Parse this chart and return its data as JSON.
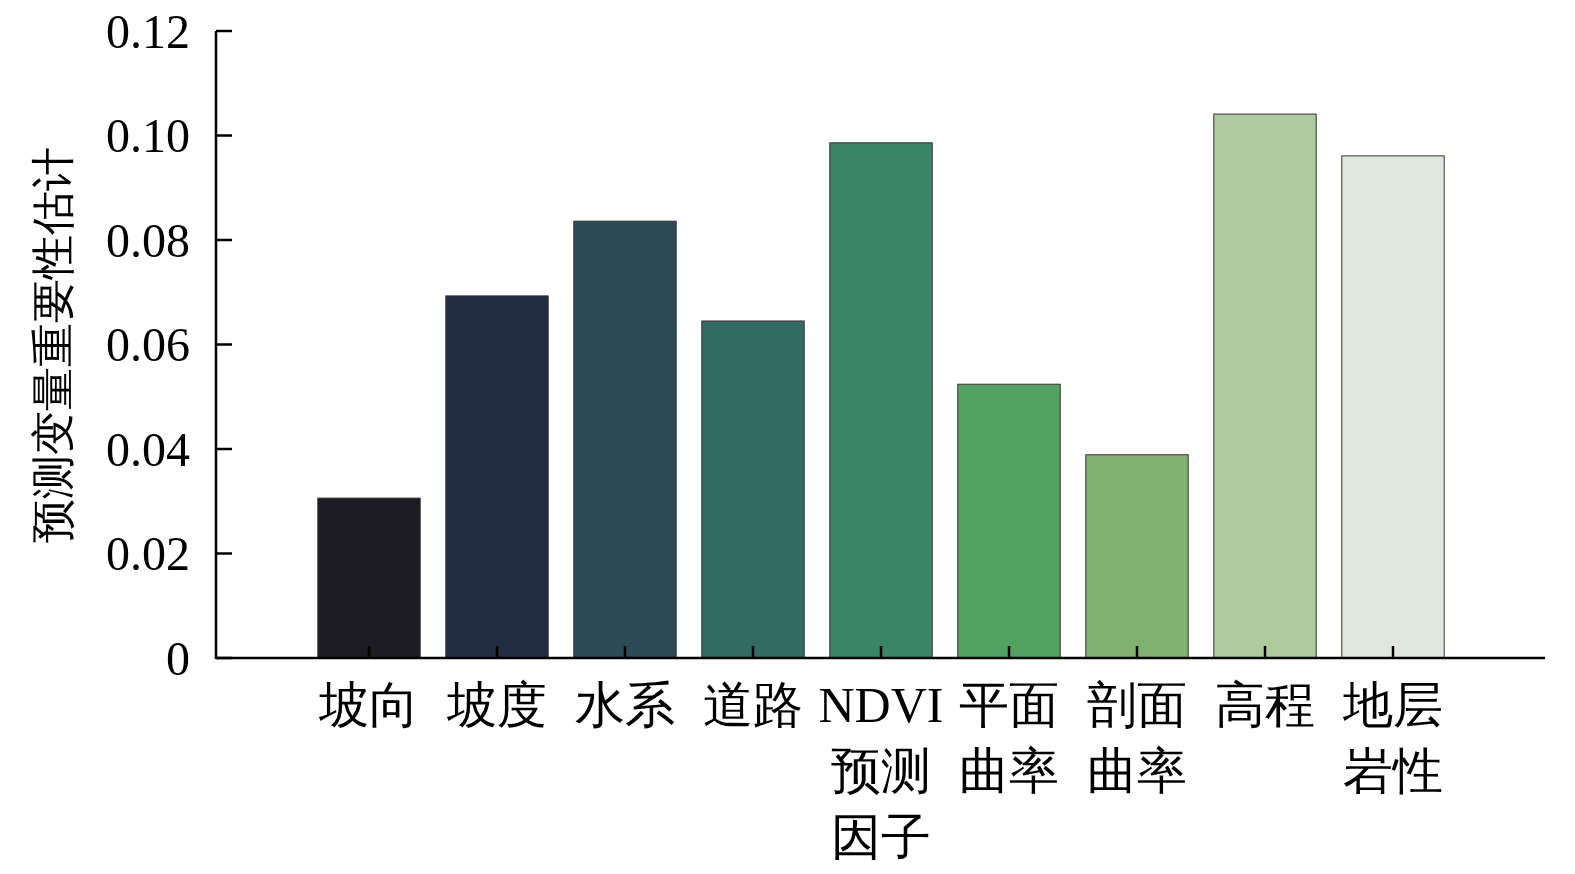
{
  "chart_data": {
    "type": "bar",
    "xlabel": "预测因子",
    "ylabel": "预测变量重要性估计",
    "categories": [
      "坡向",
      "坡度",
      "水系",
      "道路",
      "NDVI",
      "平面曲率",
      "剖面曲率",
      "高程",
      "地层岩性"
    ],
    "values": [
      0.0306,
      0.0693,
      0.0836,
      0.0645,
      0.0986,
      0.0524,
      0.0389,
      0.1041,
      0.0961
    ],
    "colors": [
      "#1c1c22",
      "#232d42",
      "#2c4b55",
      "#316b64",
      "#3a8566",
      "#52a35f",
      "#80b26f",
      "#adcb9d",
      "#e0e8dd"
    ],
    "ylim": [
      0,
      0.12
    ],
    "yticks": [
      0,
      {
        "value": 0.02,
        "label": "0.02"
      },
      {
        "value": 0.04,
        "label": "0.04"
      },
      {
        "value": 0.06,
        "label": "0.06"
      },
      {
        "value": 0.08,
        "label": "0.08"
      },
      {
        "value": 0.1,
        "label": "0.10"
      },
      {
        "value": 0.12,
        "label": "0.12"
      }
    ],
    "grid": false
  }
}
